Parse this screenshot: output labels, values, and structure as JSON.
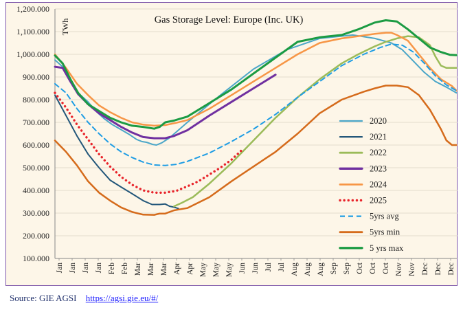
{
  "source": {
    "label": "Source: GIE AGSI",
    "link": "https://agsi.gie.eu/#/"
  },
  "chart_data": {
    "type": "line",
    "title": "Gas Storage Level: Europe (Inc. UK)",
    "ylabel": "TWh",
    "xlabel": "",
    "ylim": [
      100,
      1200
    ],
    "y_ticks": [
      "100.000",
      "200.000",
      "300.000",
      "400.000",
      "500.000",
      "600.000",
      "700.000",
      "800.000",
      "900.000",
      "1,000.000",
      "1,100.000",
      "1,200.000"
    ],
    "y_tick_values": [
      100,
      200,
      300,
      400,
      500,
      600,
      700,
      800,
      900,
      1000,
      1100,
      1200
    ],
    "x_tick_labels": [
      "Jan",
      "Jan",
      "Jan",
      "Jan",
      "Feb",
      "Feb",
      "Mar",
      "Mar",
      "Mar",
      "Apr",
      "Apr",
      "May",
      "May",
      "May",
      "Jun",
      "Jun",
      "Jul",
      "Jul",
      "Aug",
      "Aug",
      "Aug",
      "Sep",
      "Sep",
      "Oct",
      "Oct",
      "Oct",
      "Nov",
      "Nov",
      "Dec",
      "Dec",
      "Dec"
    ],
    "x_domain": [
      0,
      365
    ],
    "grid": true,
    "legend_position": "right",
    "series": [
      {
        "name": "2020",
        "color": "#4aa6c8",
        "width": 2,
        "dash": "solid",
        "x": [
          0,
          7,
          14,
          21,
          30,
          37,
          45,
          52,
          60,
          67,
          74,
          79,
          83,
          89,
          92,
          97,
          104,
          120,
          150,
          180,
          210,
          240,
          270,
          290,
          305,
          315,
          325,
          335,
          345,
          355,
          364
        ],
        "y": [
          975,
          945,
          890,
          830,
          790,
          750,
          715,
          690,
          668,
          648,
          625,
          615,
          612,
          602,
          600,
          610,
          632,
          700,
          820,
          935,
          1020,
          1070,
          1085,
          1070,
          1050,
          1020,
          970,
          920,
          880,
          855,
          830
        ]
      },
      {
        "name": "2021",
        "color": "#23577a",
        "width": 2,
        "dash": "solid",
        "x": [
          0,
          10,
          20,
          30,
          40,
          50,
          60,
          70,
          80,
          88,
          95,
          100,
          104,
          108,
          112
        ],
        "y": [
          820,
          730,
          640,
          560,
          500,
          445,
          415,
          385,
          355,
          338,
          338,
          340,
          330,
          326,
          320
        ]
      },
      {
        "name": "2022",
        "color": "#9bbb59",
        "width": 2.5,
        "dash": "solid",
        "x": [
          108,
          115,
          125,
          140,
          160,
          180,
          200,
          220,
          240,
          260,
          275,
          290,
          300,
          310,
          320,
          330,
          340,
          345,
          350,
          355,
          364
        ],
        "y": [
          330,
          345,
          370,
          430,
          520,
          620,
          720,
          810,
          890,
          960,
          1000,
          1035,
          1055,
          1070,
          1080,
          1075,
          1040,
          990,
          950,
          940,
          940
        ]
      },
      {
        "name": "2023",
        "color": "#7030a0",
        "width": 3,
        "dash": "solid",
        "x": [
          0,
          7,
          14,
          21,
          30,
          40,
          50,
          60,
          70,
          80,
          90,
          100,
          108,
          120,
          140,
          160,
          180,
          200
        ],
        "y": [
          945,
          940,
          880,
          825,
          780,
          740,
          710,
          680,
          655,
          635,
          630,
          630,
          640,
          665,
          730,
          790,
          850,
          910
        ]
      },
      {
        "name": "2024",
        "color": "#f79646",
        "width": 2.5,
        "dash": "solid",
        "x": [
          0,
          10,
          20,
          30,
          40,
          50,
          60,
          70,
          80,
          90,
          100,
          110,
          120,
          140,
          160,
          180,
          200,
          220,
          240,
          260,
          275,
          290,
          300,
          305,
          310,
          320,
          330,
          340,
          350,
          360,
          364
        ],
        "y": [
          1000,
          940,
          870,
          820,
          775,
          745,
          720,
          700,
          690,
          685,
          688,
          698,
          710,
          760,
          820,
          880,
          940,
          1000,
          1050,
          1070,
          1080,
          1090,
          1095,
          1095,
          1085,
          1060,
          1000,
          940,
          890,
          860,
          840
        ]
      },
      {
        "name": "2025",
        "color": "#e8232a",
        "width": 3,
        "dash": "2 4.6",
        "x": [
          0,
          10,
          20,
          30,
          40,
          50,
          60,
          70,
          80,
          90,
          100,
          110,
          120,
          130,
          140,
          150,
          160,
          170
        ],
        "y": [
          830,
          765,
          690,
          625,
          560,
          505,
          460,
          425,
          400,
          390,
          390,
          398,
          418,
          440,
          470,
          500,
          535,
          580
        ]
      },
      {
        "name": "5yrs avg",
        "color": "#1f9de4",
        "width": 2,
        "dash": "7 5",
        "x": [
          0,
          10,
          20,
          30,
          40,
          50,
          60,
          70,
          80,
          90,
          100,
          110,
          120,
          140,
          160,
          180,
          200,
          220,
          240,
          260,
          280,
          295,
          305,
          315,
          325,
          335,
          345,
          355,
          364
        ],
        "y": [
          870,
          830,
          760,
          700,
          650,
          605,
          570,
          545,
          525,
          512,
          510,
          515,
          528,
          565,
          615,
          670,
          735,
          810,
          880,
          950,
          1000,
          1030,
          1045,
          1040,
          1010,
          960,
          905,
          865,
          840
        ]
      },
      {
        "name": "5yrs min",
        "color": "#d56b1b",
        "width": 2.5,
        "dash": "solid",
        "x": [
          0,
          10,
          20,
          30,
          40,
          50,
          60,
          70,
          80,
          90,
          95,
          100,
          108,
          120,
          140,
          160,
          180,
          200,
          220,
          240,
          260,
          280,
          290,
          300,
          310,
          320,
          330,
          340,
          350,
          355,
          360,
          364
        ],
        "y": [
          620,
          570,
          510,
          440,
          390,
          355,
          325,
          305,
          293,
          292,
          298,
          298,
          312,
          322,
          370,
          440,
          505,
          570,
          650,
          740,
          800,
          835,
          850,
          862,
          862,
          855,
          820,
          755,
          670,
          620,
          600,
          600
        ]
      },
      {
        "name": "5 yrs max",
        "color": "#1b9b43",
        "width": 3,
        "dash": "solid",
        "x": [
          0,
          7,
          14,
          21,
          30,
          40,
          50,
          60,
          70,
          80,
          90,
          95,
          100,
          108,
          120,
          140,
          160,
          180,
          200,
          220,
          240,
          260,
          275,
          290,
          300,
          310,
          320,
          330,
          340,
          350,
          358,
          364
        ],
        "y": [
          995,
          960,
          890,
          830,
          780,
          750,
          720,
          700,
          685,
          680,
          672,
          680,
          700,
          708,
          725,
          785,
          845,
          915,
          985,
          1055,
          1075,
          1085,
          1110,
          1140,
          1150,
          1145,
          1110,
          1070,
          1030,
          1010,
          998,
          996
        ]
      }
    ]
  }
}
